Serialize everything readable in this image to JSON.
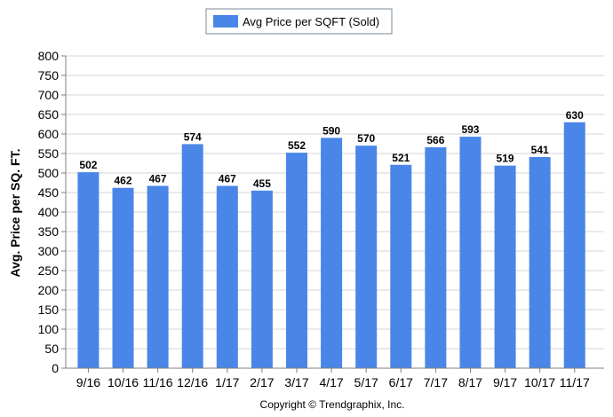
{
  "chart_data": {
    "type": "bar",
    "categories": [
      "9/16",
      "10/16",
      "11/16",
      "12/16",
      "1/17",
      "2/17",
      "3/17",
      "4/17",
      "5/17",
      "6/17",
      "7/17",
      "8/17",
      "9/17",
      "10/17",
      "11/17"
    ],
    "series": [
      {
        "name": "Avg Price per SQFT (Sold)",
        "values": [
          502,
          462,
          467,
          574,
          467,
          455,
          552,
          590,
          570,
          521,
          566,
          593,
          519,
          541,
          630
        ]
      }
    ],
    "data_labels": [
      "502",
      "462",
      "467",
      "574",
      "467",
      "455",
      "552",
      "590",
      "570",
      "521",
      "566",
      "593",
      "519",
      "541",
      "630"
    ],
    "ylabel": "Avg. Price per SQ. FT.",
    "xlabel": "",
    "ylim": [
      0,
      800
    ],
    "yticks": [
      0,
      50,
      100,
      150,
      200,
      250,
      300,
      350,
      400,
      450,
      500,
      550,
      600,
      650,
      700,
      750,
      800
    ],
    "grid": true,
    "legend_position": "top-center",
    "bar_color": "#4a86e8",
    "footer": "Copyright © Trendgraphix, Inc."
  }
}
